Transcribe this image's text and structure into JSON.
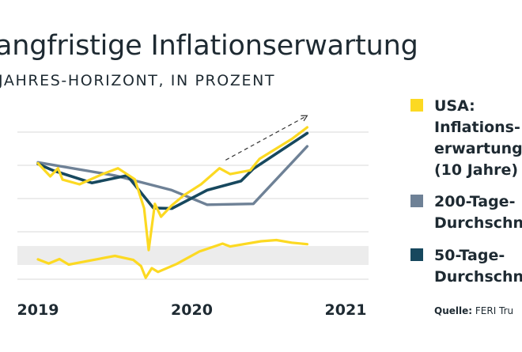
{
  "header": {
    "title": "angfristige Inflationserwartung",
    "subtitle": "JAHRES-HORIZONT, IN PROZENT"
  },
  "source": {
    "label": "Quelle:",
    "text": "FERI Tru"
  },
  "colors": {
    "usa": "#fcd922",
    "ma200": "#6e8196",
    "ma50": "#17485e",
    "band": "#ececec",
    "grid": "#d9d9d9",
    "arrow": "#333333"
  },
  "legend": [
    {
      "key": "usa",
      "lines": [
        "USA:",
        "Inflations-",
        "erwartung",
        "(10 Jahre)"
      ]
    },
    {
      "key": "ma200",
      "lines": [
        "200-Tage-",
        "Durchschn"
      ]
    },
    {
      "key": "ma50",
      "lines": [
        "50-Tage-",
        "Durchschn"
      ]
    }
  ],
  "chart_data": {
    "type": "line",
    "x_range": [
      2019.0,
      2021.0
    ],
    "x_ticks": [
      {
        "value": 2019,
        "label": "2019"
      },
      {
        "value": 2020,
        "label": "2020"
      },
      {
        "value": 2021,
        "label": "2021"
      }
    ],
    "y_range": [
      0,
      6.5
    ],
    "grid": true,
    "legend_position": "right",
    "series": [
      {
        "name": "USA: Inflations-erwartung (10 Jahre)",
        "key": "usa",
        "width": 3.2,
        "points": [
          [
            2019.0,
            3.97
          ],
          [
            2019.08,
            3.52
          ],
          [
            2019.13,
            3.8
          ],
          [
            2019.16,
            3.41
          ],
          [
            2019.27,
            3.25
          ],
          [
            2019.42,
            3.6
          ],
          [
            2019.52,
            3.8
          ],
          [
            2019.63,
            3.42
          ],
          [
            2019.69,
            2.43
          ],
          [
            2019.72,
            1.0
          ],
          [
            2019.76,
            2.58
          ],
          [
            2019.8,
            2.14
          ],
          [
            2019.87,
            2.53
          ],
          [
            2019.95,
            2.88
          ],
          [
            2020.06,
            3.25
          ],
          [
            2020.18,
            3.8
          ],
          [
            2020.25,
            3.6
          ],
          [
            2020.38,
            3.73
          ],
          [
            2020.44,
            4.12
          ],
          [
            2020.65,
            4.8
          ],
          [
            2020.75,
            5.2
          ]
        ]
      },
      {
        "name": "",
        "key": "usa_low",
        "width": 3.2,
        "points": [
          [
            2019.0,
            0.68
          ],
          [
            2019.07,
            0.54
          ],
          [
            2019.14,
            0.69
          ],
          [
            2019.2,
            0.5
          ],
          [
            2019.3,
            0.6
          ],
          [
            2019.5,
            0.8
          ],
          [
            2019.62,
            0.66
          ],
          [
            2019.67,
            0.45
          ],
          [
            2019.7,
            0.05
          ],
          [
            2019.74,
            0.38
          ],
          [
            2019.78,
            0.25
          ],
          [
            2019.9,
            0.52
          ],
          [
            2020.05,
            0.95
          ],
          [
            2020.2,
            1.22
          ],
          [
            2020.25,
            1.12
          ],
          [
            2020.45,
            1.3
          ],
          [
            2020.55,
            1.34
          ],
          [
            2020.65,
            1.25
          ],
          [
            2020.75,
            1.2
          ]
        ]
      },
      {
        "name": "200-Tage-Durchschn",
        "key": "ma200",
        "width": 3.4,
        "points": [
          [
            2019.0,
            4.0
          ],
          [
            2019.5,
            3.55
          ],
          [
            2019.87,
            3.05
          ],
          [
            2020.1,
            2.55
          ],
          [
            2020.4,
            2.58
          ],
          [
            2020.75,
            4.55
          ]
        ]
      },
      {
        "name": "50-Tage-Durchschn",
        "key": "ma50",
        "width": 3.6,
        "points": [
          [
            2019.0,
            3.95
          ],
          [
            2019.1,
            3.72
          ],
          [
            2019.35,
            3.3
          ],
          [
            2019.58,
            3.55
          ],
          [
            2019.75,
            2.44
          ],
          [
            2019.87,
            2.42
          ],
          [
            2020.1,
            3.05
          ],
          [
            2020.32,
            3.36
          ],
          [
            2020.4,
            3.78
          ],
          [
            2020.75,
            5.0
          ]
        ]
      }
    ],
    "trend_arrow": {
      "from": [
        2020.22,
        4.08
      ],
      "to": [
        2020.75,
        5.6
      ]
    }
  }
}
